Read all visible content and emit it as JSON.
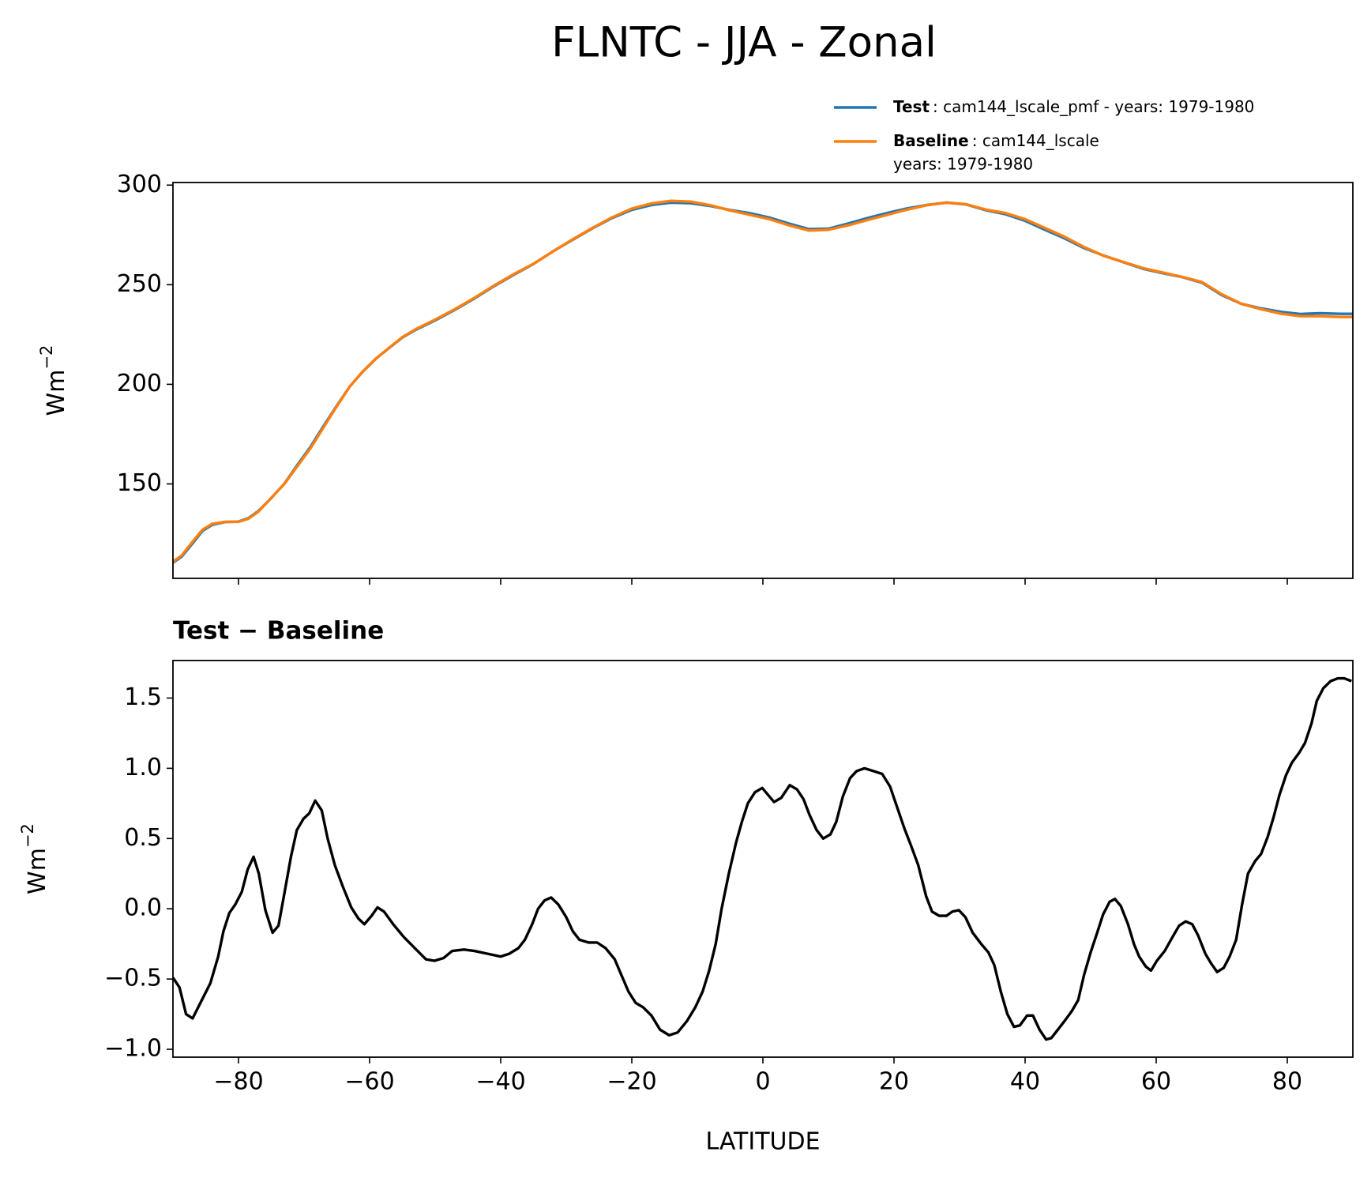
{
  "chart_data": [
    {
      "type": "line",
      "title": "FLNTC - JJA - Zonal",
      "ylabel": {
        "base": "Wm",
        "sup": "−2"
      },
      "x": [
        -90,
        -88.7,
        -87,
        -85.5,
        -84,
        -82,
        -80,
        -78.5,
        -77,
        -75,
        -73,
        -71,
        -69,
        -67,
        -65,
        -63,
        -61,
        -59,
        -57,
        -55,
        -53,
        -50,
        -47,
        -44,
        -41,
        -38,
        -35,
        -32,
        -29,
        -26,
        -23,
        -20,
        -17,
        -14,
        -11,
        -8,
        -5,
        -2,
        1,
        4,
        7,
        10,
        13,
        16,
        19,
        22,
        25,
        28,
        31,
        34,
        37,
        40,
        43,
        46,
        49,
        52,
        55,
        58,
        61,
        64,
        67,
        70,
        73,
        76,
        79,
        82,
        85,
        88,
        90
      ],
      "series": [
        {
          "name": "Test",
          "label": ": cam144_lscale_pmf - years: 1979-1980",
          "color": "#1f77b4",
          "values": [
            110.5,
            113.4,
            120.2,
            126.4,
            129.5,
            130.9,
            131.1,
            132.8,
            136.3,
            142.9,
            150.1,
            159.6,
            168.7,
            179.2,
            189.3,
            199,
            206.5,
            213,
            218.3,
            223.5,
            227.3,
            232.1,
            237.4,
            243.1,
            249.3,
            255,
            260.4,
            266.8,
            272.6,
            278.3,
            283.5,
            287.6,
            290,
            291.2,
            290.9,
            289.5,
            287.5,
            285.9,
            283.7,
            280.7,
            277.9,
            278.1,
            280.7,
            283.5,
            286,
            288.3,
            290,
            291.2,
            290.3,
            287.4,
            285.4,
            282.1,
            277.6,
            273.3,
            268.4,
            264.6,
            261.3,
            258,
            255.8,
            253.8,
            251,
            244.8,
            240.4,
            238.1,
            236.4,
            235.3,
            235.7,
            235.4,
            235.4
          ]
        },
        {
          "name": "Baseline",
          "label_lines": [
            ": cam144_lscale",
            "years: 1979-1980"
          ],
          "color": "#ff7f0e",
          "values": [
            111,
            114,
            121,
            127,
            130,
            131,
            131,
            132.5,
            136,
            143,
            150,
            159,
            168,
            178.5,
            189,
            199,
            206.6,
            213,
            218.4,
            223.7,
            227.6,
            232.5,
            237.7,
            243.4,
            249.6,
            255.3,
            260.5,
            266.7,
            272.8,
            278.5,
            283.8,
            288.2,
            290.8,
            292.1,
            291.7,
            289.9,
            287.3,
            285.1,
            282.9,
            279.8,
            277.2,
            277.6,
            279.8,
            282.5,
            285.1,
            287.7,
            289.9,
            291.2,
            290.4,
            287.7,
            286,
            282.9,
            278.5,
            274.1,
            268.9,
            264.5,
            261.4,
            258.3,
            256.1,
            253.9,
            251.3,
            245.2,
            240.4,
            237.7,
            235.5,
            234.2,
            234.2,
            233.8,
            233.8
          ]
        }
      ],
      "xlim": [
        -90,
        90
      ],
      "xticks": [
        -80,
        -60,
        -40,
        -20,
        0,
        20,
        40,
        60,
        80
      ],
      "xtick_labels": false,
      "ylim": [
        102.6,
        301.3
      ],
      "yticks": [
        150,
        200,
        250,
        300
      ]
    },
    {
      "type": "line",
      "title": "Test − Baseline",
      "xlabel": "LATITUDE",
      "ylabel": {
        "base": "Wm",
        "sup": "−2"
      },
      "x": [
        -90,
        -89,
        -88,
        -87,
        -85.6,
        -84.3,
        -83.1,
        -82.3,
        -81.4,
        -80.5,
        -79.5,
        -78.6,
        -77.7,
        -76.9,
        -75.9,
        -74.8,
        -73.9,
        -73,
        -72,
        -71.1,
        -70.1,
        -69.2,
        -68.3,
        -67.3,
        -66.4,
        -65.3,
        -64.1,
        -62.8,
        -61.7,
        -60.8,
        -59.7,
        -58.8,
        -57.8,
        -56.4,
        -54.8,
        -53.1,
        -51.4,
        -50.1,
        -48.7,
        -47.4,
        -45.6,
        -44,
        -42,
        -40,
        -38.7,
        -37.3,
        -36.3,
        -35.2,
        -34.3,
        -33.3,
        -32.3,
        -31.2,
        -30,
        -29,
        -28,
        -26.6,
        -25.3,
        -24,
        -22.6,
        -21.6,
        -20.5,
        -19.4,
        -18.3,
        -17,
        -15.7,
        -14.3,
        -13,
        -11.6,
        -10.3,
        -9.2,
        -8.2,
        -7.2,
        -6.3,
        -5.2,
        -4.1,
        -3.2,
        -2.3,
        -1.2,
        -0.1,
        0.8,
        1.7,
        2.8,
        4.1,
        5.2,
        6.2,
        7.1,
        8.2,
        9.2,
        10.3,
        11.2,
        12.2,
        13.3,
        14.3,
        15.5,
        16.9,
        18.2,
        19.4,
        20.5,
        21.6,
        22.6,
        23.7,
        24.9,
        25.8,
        26.9,
        28,
        28.9,
        29.9,
        30.9,
        32,
        33.3,
        34.4,
        35.3,
        36.3,
        37.3,
        38.3,
        39.2,
        40.3,
        41.2,
        42.2,
        43.2,
        44,
        45,
        46,
        47.1,
        48.1,
        49,
        50,
        51,
        51.9,
        52.9,
        53.7,
        54.6,
        55.7,
        56.6,
        57.4,
        58.4,
        59.2,
        60.1,
        61.3,
        62.5,
        63.5,
        64.5,
        65.5,
        66.4,
        67.5,
        68.4,
        69.3,
        70.3,
        71.2,
        72.2,
        73.1,
        74,
        75.1,
        76,
        77,
        77.9,
        78.8,
        79.8,
        80.7,
        81.8,
        82.7,
        83.7,
        84.5,
        85.5,
        86.6,
        87.7,
        88.7,
        89.8
      ],
      "series": [
        {
          "color": "#000000",
          "values": [
            -0.49,
            -0.56,
            -0.75,
            -0.78,
            -0.65,
            -0.53,
            -0.34,
            -0.16,
            -0.03,
            0.03,
            0.12,
            0.28,
            0.37,
            0.25,
            -0.01,
            -0.17,
            -0.12,
            0.11,
            0.37,
            0.56,
            0.64,
            0.68,
            0.77,
            0.7,
            0.5,
            0.31,
            0.16,
            0.01,
            -0.07,
            -0.11,
            -0.05,
            0.01,
            -0.02,
            -0.11,
            -0.2,
            -0.28,
            -0.36,
            -0.37,
            -0.35,
            -0.3,
            -0.29,
            -0.3,
            -0.32,
            -0.34,
            -0.32,
            -0.28,
            -0.22,
            -0.11,
            0,
            0.06,
            0.08,
            0.03,
            -0.06,
            -0.16,
            -0.22,
            -0.24,
            -0.24,
            -0.28,
            -0.36,
            -0.47,
            -0.59,
            -0.67,
            -0.7,
            -0.76,
            -0.86,
            -0.9,
            -0.88,
            -0.8,
            -0.7,
            -0.59,
            -0.44,
            -0.25,
            0,
            0.25,
            0.47,
            0.62,
            0.75,
            0.83,
            0.86,
            0.81,
            0.76,
            0.79,
            0.88,
            0.85,
            0.78,
            0.67,
            0.56,
            0.5,
            0.53,
            0.62,
            0.8,
            0.93,
            0.98,
            1.0,
            0.98,
            0.96,
            0.87,
            0.72,
            0.57,
            0.45,
            0.31,
            0.09,
            -0.02,
            -0.05,
            -0.05,
            -0.02,
            -0.01,
            -0.06,
            -0.17,
            -0.25,
            -0.31,
            -0.4,
            -0.59,
            -0.75,
            -0.84,
            -0.83,
            -0.76,
            -0.76,
            -0.86,
            -0.93,
            -0.92,
            -0.86,
            -0.8,
            -0.73,
            -0.65,
            -0.47,
            -0.31,
            -0.17,
            -0.04,
            0.05,
            0.07,
            0.02,
            -0.11,
            -0.25,
            -0.34,
            -0.41,
            -0.44,
            -0.37,
            -0.3,
            -0.2,
            -0.12,
            -0.09,
            -0.11,
            -0.19,
            -0.32,
            -0.39,
            -0.45,
            -0.42,
            -0.34,
            -0.22,
            0.03,
            0.25,
            0.34,
            0.39,
            0.51,
            0.65,
            0.81,
            0.95,
            1.04,
            1.11,
            1.18,
            1.32,
            1.48,
            1.57,
            1.62,
            1.64,
            1.64,
            1.62
          ]
        }
      ],
      "xlim": [
        -90,
        90
      ],
      "xticks": [
        {
          "value": -80,
          "label": "−80"
        },
        {
          "value": -60,
          "label": "−60"
        },
        {
          "value": -40,
          "label": "−40"
        },
        {
          "value": -20,
          "label": "−20"
        },
        0,
        20,
        40,
        60,
        80
      ],
      "ylim": [
        -1.056,
        1.767
      ],
      "yticks": [
        {
          "value": -1,
          "label": "−1.0"
        },
        {
          "value": -0.5,
          "label": "−0.5"
        },
        {
          "value": 0,
          "label": "0.0"
        },
        0.5,
        {
          "value": 1,
          "label": "1.0"
        },
        1.5
      ]
    }
  ]
}
